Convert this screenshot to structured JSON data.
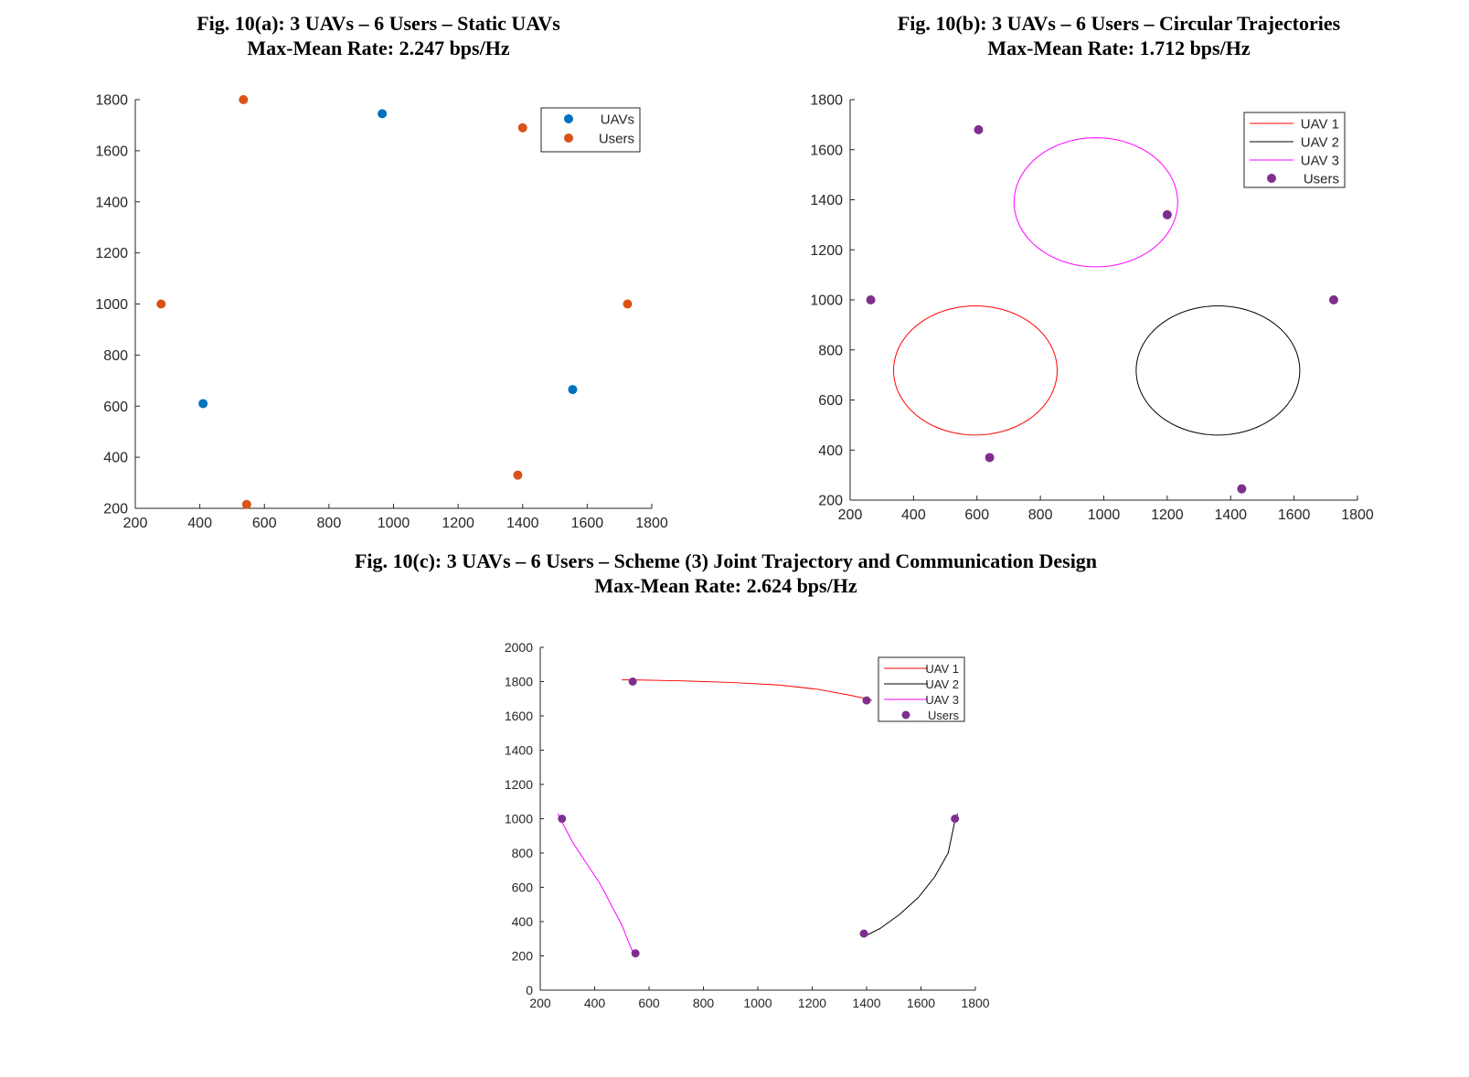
{
  "chart_data": [
    {
      "type": "scatter",
      "title": "Fig. 10(a): 3 UAVs – 6 Users – Static UAVs",
      "subtitle": "Max-Mean Rate: 2.247 bps/Hz",
      "xlabel": "",
      "ylabel": "",
      "xlim": [
        200,
        1800
      ],
      "ylim": [
        200,
        1800
      ],
      "xticks": [
        200,
        400,
        600,
        800,
        1000,
        1200,
        1400,
        1600,
        1800
      ],
      "yticks": [
        200,
        400,
        600,
        800,
        1000,
        1200,
        1400,
        1600,
        1800
      ],
      "grid": false,
      "legend_position": "top-right",
      "series": [
        {
          "name": "UAVs",
          "kind": "markers",
          "color": "#0072BD",
          "points": [
            [
              965,
              1745
            ],
            [
              410,
              610
            ],
            [
              1555,
              665
            ]
          ]
        },
        {
          "name": "Users",
          "kind": "markers",
          "color": "#D95319",
          "points": [
            [
              535,
              1800
            ],
            [
              1400,
              1690
            ],
            [
              280,
              1000
            ],
            [
              1725,
              1000
            ],
            [
              1385,
              330
            ],
            [
              545,
              215
            ]
          ]
        }
      ]
    },
    {
      "type": "line",
      "title": "Fig. 10(b): 3 UAVs – 6 Users – Circular Trajectories",
      "subtitle": "Max-Mean Rate: 1.712 bps/Hz",
      "xlabel": "",
      "ylabel": "",
      "xlim": [
        200,
        1800
      ],
      "ylim": [
        200,
        1800
      ],
      "xticks": [
        200,
        400,
        600,
        800,
        1000,
        1200,
        1400,
        1600,
        1800
      ],
      "yticks": [
        200,
        400,
        600,
        800,
        1000,
        1200,
        1400,
        1600,
        1800
      ],
      "grid": false,
      "legend_position": "top-right",
      "series": [
        {
          "name": "UAV 1",
          "kind": "circle",
          "color": "#FF0000",
          "center": [
            595,
            718
          ],
          "radius_x": 258,
          "radius_y": 258
        },
        {
          "name": "UAV 2",
          "kind": "circle",
          "color": "#000000",
          "center": [
            1360,
            718
          ],
          "radius_x": 258,
          "radius_y": 258
        },
        {
          "name": "UAV 3",
          "kind": "circle",
          "color": "#FF00FF",
          "center": [
            975,
            1390
          ],
          "radius_x": 258,
          "radius_y": 258
        },
        {
          "name": "Users",
          "kind": "markers",
          "color": "#7E2F8E",
          "points": [
            [
              605,
              1680
            ],
            [
              1200,
              1340
            ],
            [
              265,
              1000
            ],
            [
              1725,
              1000
            ],
            [
              640,
              370
            ],
            [
              1435,
              245
            ]
          ]
        }
      ]
    },
    {
      "type": "line",
      "title": "Fig. 10(c): 3 UAVs – 6 Users – Scheme (3) Joint Trajectory and Communication Design",
      "subtitle": "Max-Mean Rate: 2.624 bps/Hz",
      "xlabel": "",
      "ylabel": "",
      "xlim": [
        200,
        1800
      ],
      "ylim": [
        0,
        2000
      ],
      "xticks": [
        200,
        400,
        600,
        800,
        1000,
        1200,
        1400,
        1600,
        1800
      ],
      "yticks": [
        0,
        200,
        400,
        600,
        800,
        1000,
        1200,
        1400,
        1600,
        1800,
        2000
      ],
      "grid": false,
      "legend_position": "top-right",
      "series": [
        {
          "name": "UAV 1",
          "kind": "path",
          "color": "#FF0000",
          "points": [
            [
              500,
              1810
            ],
            [
              540,
              1810
            ],
            [
              700,
              1805
            ],
            [
              900,
              1795
            ],
            [
              1080,
              1780
            ],
            [
              1220,
              1755
            ],
            [
              1340,
              1720
            ],
            [
              1400,
              1700
            ],
            [
              1420,
              1690
            ]
          ]
        },
        {
          "name": "UAV 2",
          "kind": "path",
          "color": "#000000",
          "points": [
            [
              1385,
              310
            ],
            [
              1400,
              320
            ],
            [
              1450,
              360
            ],
            [
              1520,
              440
            ],
            [
              1590,
              540
            ],
            [
              1650,
              660
            ],
            [
              1700,
              800
            ],
            [
              1725,
              990
            ],
            [
              1735,
              1030
            ]
          ]
        },
        {
          "name": "UAV 3",
          "kind": "path",
          "color": "#FF00FF",
          "points": [
            [
              265,
              1030
            ],
            [
              280,
              980
            ],
            [
              320,
              860
            ],
            [
              370,
              740
            ],
            [
              420,
              620
            ],
            [
              460,
              500
            ],
            [
              500,
              380
            ],
            [
              530,
              260
            ],
            [
              548,
              195
            ]
          ]
        },
        {
          "name": "Users",
          "kind": "markers",
          "color": "#7E2F8E",
          "points": [
            [
              540,
              1800
            ],
            [
              1400,
              1690
            ],
            [
              280,
              1000
            ],
            [
              1725,
              1000
            ],
            [
              1390,
              330
            ],
            [
              550,
              215
            ]
          ]
        }
      ]
    }
  ]
}
